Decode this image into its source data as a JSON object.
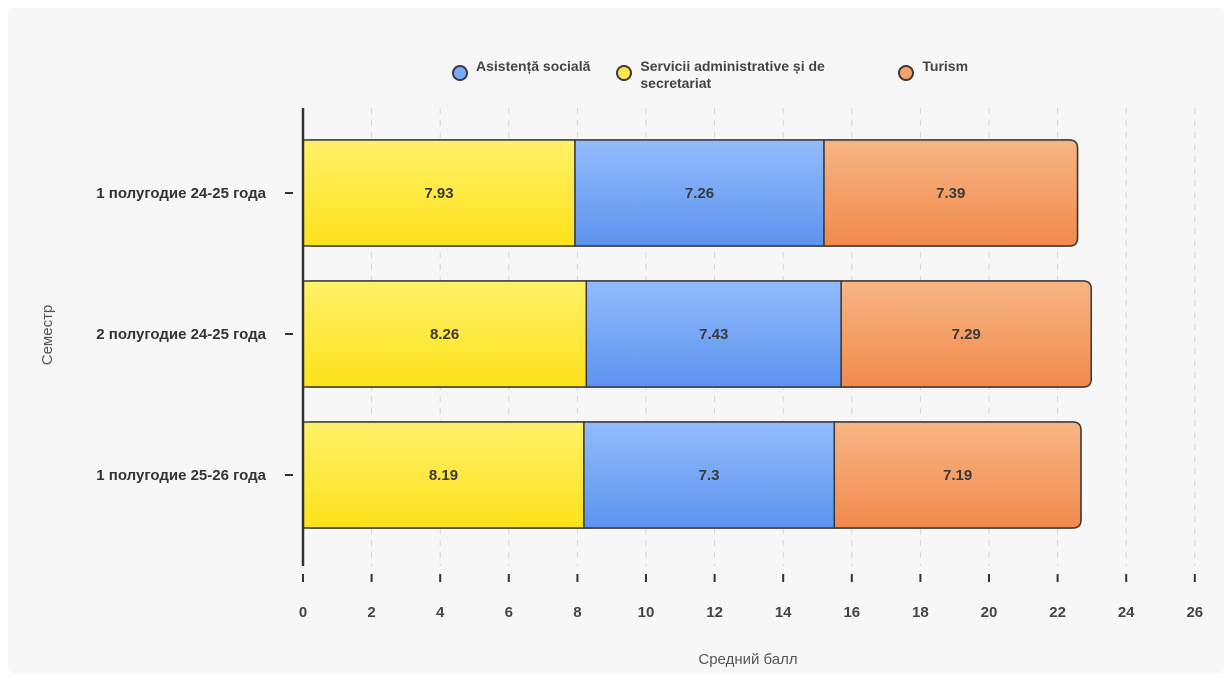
{
  "chart_data": {
    "type": "bar",
    "orientation": "horizontal",
    "stacked": true,
    "categories": [
      "1 полугодие 24-25 года",
      "2 полугодие 24-25 года",
      "1 полугодие 25-26 года"
    ],
    "series": [
      {
        "name": "Servicii administrative și de secretariat",
        "color": "#fde74c",
        "values": [
          7.93,
          8.26,
          8.19
        ]
      },
      {
        "name": "Asistență socială",
        "color": "#7aaaf7",
        "values": [
          7.26,
          7.43,
          7.3
        ]
      },
      {
        "name": "Turism",
        "color": "#f5a36a",
        "values": [
          7.39,
          7.29,
          7.19
        ]
      }
    ],
    "legend_order": [
      "Asistență socială",
      "Servicii administrative și de secretariat",
      "Turism"
    ],
    "xlabel": "Средний балл",
    "ylabel": "Семестр",
    "xlim": [
      0,
      26
    ],
    "xticks": [
      0,
      2,
      4,
      6,
      8,
      10,
      12,
      14,
      16,
      18,
      20,
      22,
      24,
      26
    ],
    "grid": "vertical dashed",
    "legend_position": "top"
  }
}
